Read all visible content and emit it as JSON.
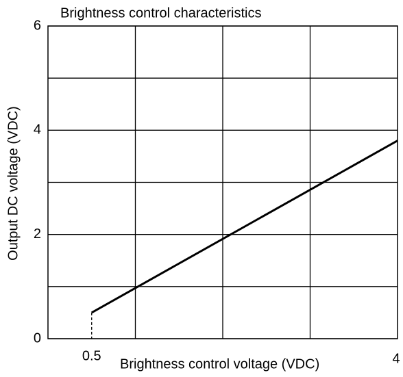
{
  "chart_data": {
    "type": "line",
    "title": "Brightness control characteristics",
    "x_label": "Brightness control voltage (VDC)",
    "y_label": "Output DC voltage (VDC)",
    "series": [
      {
        "color": "#000000",
        "x": [
          0.5,
          4
        ],
        "values": [
          0.5,
          3.8
        ]
      }
    ],
    "xlim": [
      0,
      4
    ],
    "xticks": [
      0.5,
      4
    ],
    "xgrid": [
      1,
      2,
      3
    ],
    "ylim": [
      0,
      6
    ],
    "yticks": [
      0,
      2,
      4,
      6
    ],
    "ygrid": [
      1,
      3,
      5
    ],
    "grid": true
  }
}
